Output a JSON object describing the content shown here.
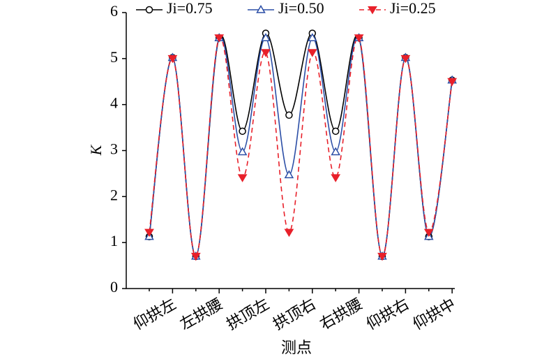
{
  "chart_data": {
    "type": "line",
    "xlabel": "测点",
    "ylabel": "K",
    "categories": [
      null,
      "仰拱左",
      null,
      "左拱腰",
      null,
      "拱顶左",
      null,
      "拱顶右",
      null,
      "右拱腰",
      null,
      "仰拱右",
      null,
      "仰拱中"
    ],
    "series": [
      {
        "name": "Ji=0.75",
        "color": "#000000",
        "marker": "circle",
        "dash": false,
        "values": [
          1.13,
          5.02,
          0.7,
          5.45,
          3.42,
          5.55,
          3.77,
          5.55,
          3.42,
          5.45,
          0.7,
          5.02,
          1.13,
          4.53
        ]
      },
      {
        "name": "Ji=0.50",
        "color": "#2b4ea6",
        "marker": "triangle",
        "dash": false,
        "values": [
          1.13,
          5.02,
          0.7,
          5.45,
          2.97,
          5.45,
          2.47,
          5.45,
          2.97,
          5.45,
          0.7,
          5.02,
          1.13,
          4.53
        ]
      },
      {
        "name": "Ji=0.25",
        "color": "#e8202a",
        "marker": "triangle-down",
        "dash": true,
        "values": [
          1.22,
          5.0,
          0.7,
          5.45,
          2.41,
          5.13,
          1.22,
          5.13,
          2.41,
          5.45,
          0.7,
          5.0,
          1.22,
          4.5
        ]
      }
    ],
    "ylim": [
      0,
      6
    ],
    "yticks": [
      0,
      1,
      2,
      3,
      4,
      5,
      6
    ],
    "legend": "top"
  }
}
